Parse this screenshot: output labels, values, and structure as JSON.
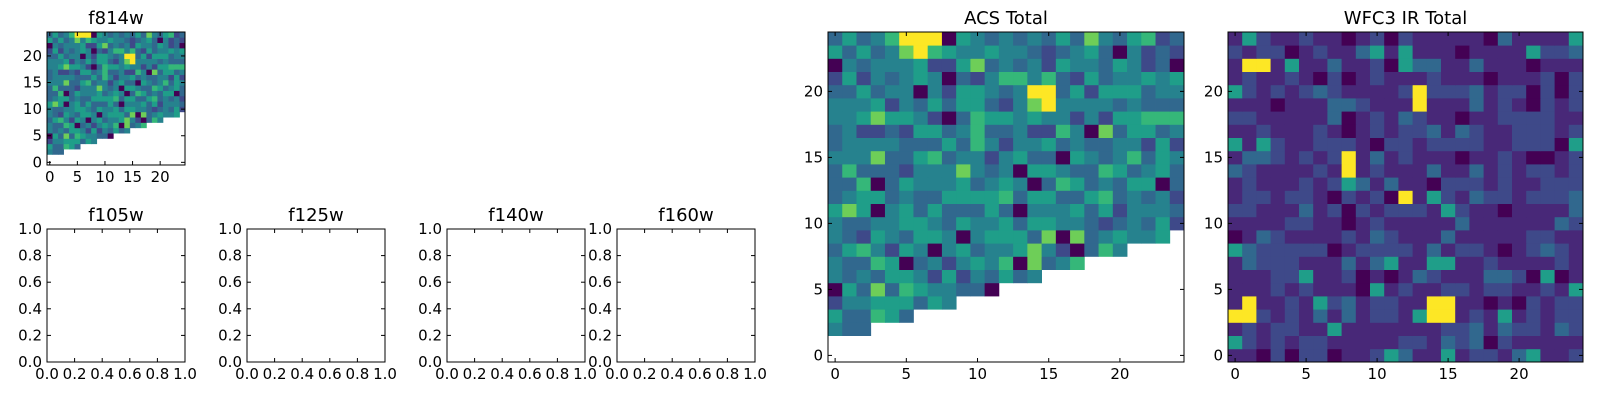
{
  "colormap": [
    "#440154",
    "#482878",
    "#3e4989",
    "#31688e",
    "#26828e",
    "#1f9e89",
    "#35b779",
    "#6ece58",
    "#b5de2b",
    "#fde725"
  ],
  "chart_data": [
    {
      "type": "heatmap",
      "title": "f814w",
      "grid_size": 25,
      "xlim": [
        -0.5,
        24.5
      ],
      "ylim": [
        -0.5,
        24.5
      ],
      "xticks": [
        0,
        5,
        10,
        15,
        20
      ],
      "yticks": [
        0,
        5,
        10,
        15,
        20
      ],
      "xtick_labels": [
        "0",
        "5",
        "10",
        "15",
        "20"
      ],
      "ytick_labels": [
        "0",
        "5",
        "10",
        "15",
        "20"
      ],
      "mask": "lower-right triangle empty",
      "bright_pixels": [
        [
          5,
          24
        ],
        [
          6,
          24
        ],
        [
          7,
          24
        ],
        [
          14,
          20
        ],
        [
          15,
          20
        ],
        [
          15,
          19
        ]
      ]
    },
    {
      "type": "heatmap",
      "title": "f105w",
      "empty": true,
      "xticks": [
        0.0,
        0.2,
        0.4,
        0.6,
        0.8,
        1.0
      ],
      "yticks": [
        0.0,
        0.2,
        0.4,
        0.6,
        0.8,
        1.0
      ],
      "xtick_labels": [
        "0.0",
        "0.2",
        "0.4",
        "0.6",
        "0.8",
        "1.0"
      ],
      "ytick_labels": [
        "0.0",
        "0.2",
        "0.4",
        "0.6",
        "0.8",
        "1.0"
      ]
    },
    {
      "type": "heatmap",
      "title": "f125w",
      "empty": true,
      "xticks": [
        0.0,
        0.2,
        0.4,
        0.6,
        0.8,
        1.0
      ],
      "yticks": [
        0.0,
        0.2,
        0.4,
        0.6,
        0.8,
        1.0
      ],
      "xtick_labels": [
        "0.0",
        "0.2",
        "0.4",
        "0.6",
        "0.8",
        "1.0"
      ],
      "ytick_labels": [
        "0.0",
        "0.2",
        "0.4",
        "0.6",
        "0.8",
        "1.0"
      ]
    },
    {
      "type": "heatmap",
      "title": "f140w",
      "empty": true,
      "xticks": [
        0.0,
        0.2,
        0.4,
        0.6,
        0.8,
        1.0
      ],
      "yticks": [
        0.0,
        0.2,
        0.4,
        0.6,
        0.8,
        1.0
      ],
      "xtick_labels": [
        "0.0",
        "0.2",
        "0.4",
        "0.6",
        "0.8",
        "1.0"
      ],
      "ytick_labels": [
        "0.0",
        "0.2",
        "0.4",
        "0.6",
        "0.8",
        "1.0"
      ]
    },
    {
      "type": "heatmap",
      "title": "f160w",
      "empty": true,
      "xticks": [
        0.0,
        0.2,
        0.4,
        0.6,
        0.8,
        1.0
      ],
      "yticks": [
        0.0,
        0.2,
        0.4,
        0.6,
        0.8,
        1.0
      ],
      "xtick_labels": [
        "0.0",
        "0.2",
        "0.4",
        "0.6",
        "0.8",
        "1.0"
      ],
      "ytick_labels": [
        "0.0",
        "0.2",
        "0.4",
        "0.6",
        "0.8",
        "1.0"
      ]
    },
    {
      "type": "heatmap",
      "title": "ACS Total",
      "grid_size": 25,
      "xlim": [
        -0.5,
        24.5
      ],
      "ylim": [
        -0.5,
        24.5
      ],
      "xticks": [
        0,
        5,
        10,
        15,
        20
      ],
      "yticks": [
        0,
        5,
        10,
        15,
        20
      ],
      "xtick_labels": [
        "0",
        "5",
        "10",
        "15",
        "20"
      ],
      "ytick_labels": [
        "0",
        "5",
        "10",
        "15",
        "20"
      ],
      "mask": "lower-right triangle empty",
      "bright_pixels": [
        [
          5,
          24
        ],
        [
          6,
          24
        ],
        [
          7,
          24
        ],
        [
          6,
          23
        ],
        [
          14,
          20
        ],
        [
          15,
          20
        ],
        [
          15,
          19
        ]
      ]
    },
    {
      "type": "heatmap",
      "title": "WFC3 IR Total",
      "grid_size": 25,
      "xlim": [
        -0.5,
        24.5
      ],
      "ylim": [
        -0.5,
        24.5
      ],
      "xticks": [
        0,
        5,
        10,
        15,
        20
      ],
      "yticks": [
        0,
        5,
        10,
        15,
        20
      ],
      "xtick_labels": [
        "0",
        "5",
        "10",
        "15",
        "20"
      ],
      "ytick_labels": [
        "0",
        "5",
        "10",
        "15",
        "20"
      ],
      "bright_pixels": [
        [
          1,
          22
        ],
        [
          2,
          22
        ],
        [
          13,
          20
        ],
        [
          13,
          19
        ],
        [
          8,
          15
        ],
        [
          8,
          14
        ],
        [
          12,
          12
        ],
        [
          1,
          4
        ],
        [
          0,
          3
        ],
        [
          1,
          3
        ],
        [
          14,
          4
        ],
        [
          15,
          4
        ],
        [
          14,
          3
        ],
        [
          15,
          3
        ]
      ]
    }
  ]
}
